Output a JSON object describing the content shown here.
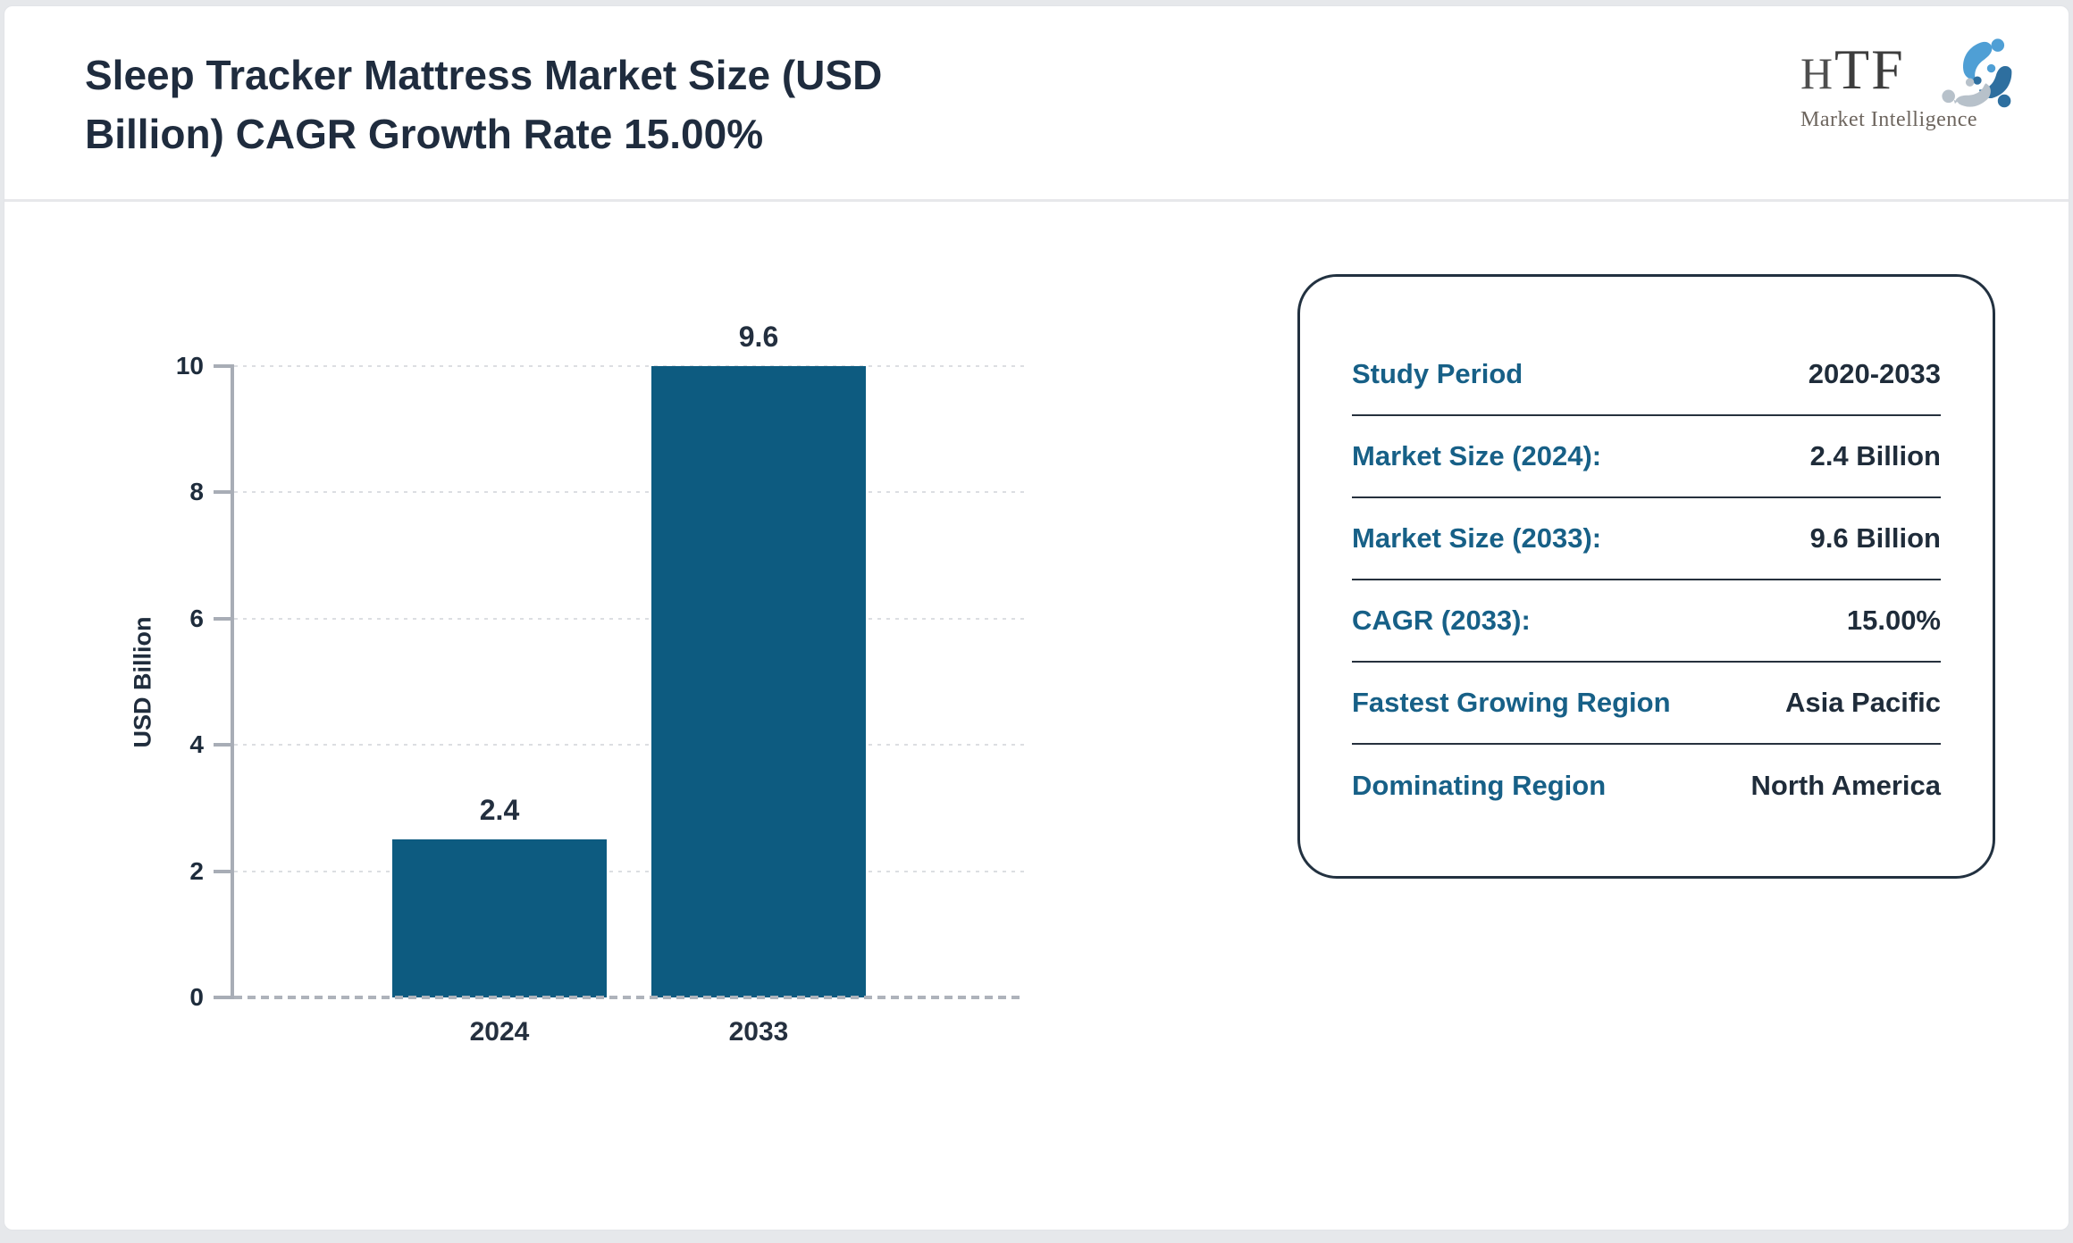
{
  "header": {
    "title_lines": [
      "Sleep Tracker Mattress Market Size (USD",
      "Billion) CAGR Growth Rate 15.00%"
    ],
    "logo": {
      "text": "HTF",
      "subtitle": "Market Intelligence"
    }
  },
  "chart_data": {
    "type": "bar",
    "title": "Sleep Tracker Mattress Market Size (USD Billion) CAGR Growth Rate 15.00%",
    "categories": [
      "2024",
      "2033"
    ],
    "values": [
      2.4,
      9.6
    ],
    "data_labels": [
      "2.4",
      "9.6"
    ],
    "xlabel": "",
    "ylabel": "USD Billion",
    "ylim": [
      0,
      10
    ],
    "yticks": [
      0,
      2,
      4,
      6,
      8,
      10
    ],
    "grid": true,
    "gridline_style": "dashed",
    "legend": false,
    "bar_color": "#0d5b80"
  },
  "info_panel": {
    "rows": [
      {
        "label": "Study Period",
        "value": "2020-2033"
      },
      {
        "label": "Market Size (2024):",
        "value": "2.4 Billion"
      },
      {
        "label": "Market Size (2033):",
        "value": "9.6 Billion"
      },
      {
        "label": "CAGR (2033):",
        "value": "15.00%"
      },
      {
        "label": "Fastest Growing Region",
        "value": "Asia Pacific"
      },
      {
        "label": "Dominating Region",
        "value": "North America"
      }
    ]
  },
  "colors": {
    "bar": "#0d5b80",
    "label_teal": "#176087",
    "text_dark": "#1f2c3e",
    "axis_grey": "#a8adb6",
    "gridline": "#dcdee2",
    "panel_border": "#223140",
    "page_background": "#e6e8eb"
  }
}
